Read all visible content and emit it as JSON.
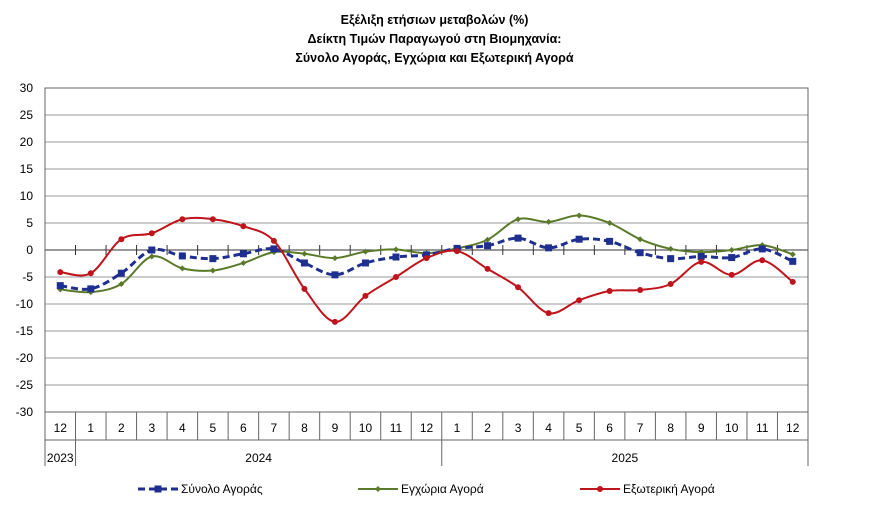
{
  "chart_data": {
    "type": "line",
    "title": [
      "Εξέλιξη ετήσιων μεταβολών (%)",
      "Δείκτη Τιμών Παραγωγού στη Βιομηχανία:",
      "Σύνολο Αγοράς, Εγχώρια και Εξωτερική Αγορά"
    ],
    "categories": [
      "12",
      "1",
      "2",
      "3",
      "4",
      "5",
      "6",
      "7",
      "8",
      "9",
      "10",
      "11",
      "12",
      "1",
      "2",
      "3",
      "4",
      "5",
      "6",
      "7",
      "8",
      "9",
      "10",
      "11",
      "12"
    ],
    "year_groups": [
      {
        "label": "2023",
        "count": 1
      },
      {
        "label": "2024",
        "count": 12
      },
      {
        "label": "2025",
        "count": 12
      }
    ],
    "ylim": [
      -30,
      30
    ],
    "yticks": [
      30,
      25,
      20,
      15,
      10,
      5,
      0,
      -5,
      -10,
      -15,
      -20,
      -25,
      -30
    ],
    "grid": true,
    "legend": "bottom",
    "series": [
      {
        "name": "Σύνολο Αγοράς",
        "color": "#1f2f8f",
        "style": "dashed-square",
        "values": [
          -6.6,
          -7.2,
          -4.3,
          0.0,
          -1.1,
          -1.6,
          -0.7,
          0.2,
          -2.4,
          -4.6,
          -2.4,
          -1.3,
          -0.9,
          0.3,
          0.8,
          2.2,
          0.4,
          2.0,
          1.6,
          -0.5,
          -1.6,
          -1.2,
          -1.4,
          0.2,
          -2.1
        ]
      },
      {
        "name": "Εγχώρια Αγορά",
        "color": "#5a7a2a",
        "style": "solid-diamond",
        "values": [
          -7.3,
          -7.8,
          -6.3,
          -1.2,
          -3.4,
          -3.8,
          -2.4,
          -0.4,
          -0.7,
          -1.5,
          -0.3,
          0.1,
          -0.6,
          0.3,
          1.9,
          5.7,
          5.2,
          6.4,
          5.0,
          2.0,
          0.2,
          -0.4,
          0.0,
          0.9,
          -0.8
        ]
      },
      {
        "name": "Εξωτερική Αγορά",
        "color": "#c0141c",
        "style": "solid-circle",
        "values": [
          -4.1,
          -4.3,
          2.0,
          3.1,
          5.7,
          5.7,
          4.4,
          1.7,
          -7.2,
          -13.3,
          -8.5,
          -5.0,
          -1.5,
          -0.2,
          -3.5,
          -6.9,
          -11.7,
          -9.3,
          -7.6,
          -7.4,
          -6.3,
          -2.2,
          -4.6,
          -1.9,
          -5.9
        ]
      }
    ]
  }
}
